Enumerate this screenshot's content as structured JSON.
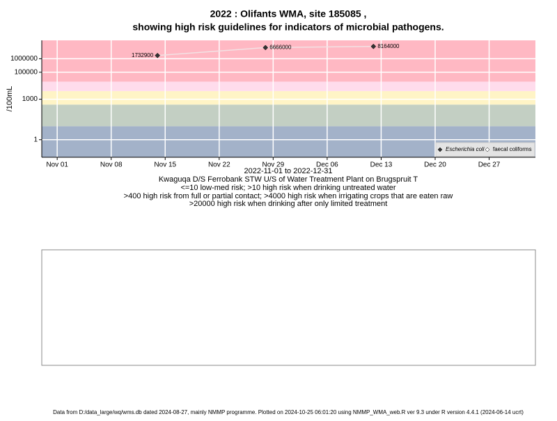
{
  "chart_data": {
    "type": "scatter",
    "title": [
      "2022 : Olifants WMA, site 185085 ,",
      "showing high risk guidelines for indicators of microbial pathogens."
    ],
    "x_label": "2022-11-01 to 2022-12-31",
    "notes": [
      "Kwaguqa D/S Ferrobank STW U/S of Water Treatment Plant on Brugspruit T",
      "<=10 low-med risk; >10 high risk when drinking untreated water",
      ">400 high risk from full or partial contact; >4000 high risk when irrigating crops that are eaten raw",
      ">20000 high risk when drinking after only limited treatment"
    ],
    "y_label": "/100mL",
    "footer": "Data from D:/data_large/wq/wms.db dated 2024-08-27, mainly NMMP programme. Plotted on 2024-10-25 06:01:20 using NMMP_WMA_web.R ver 9.3 under R version 4.4.1 (2024-06-14 ucrt)",
    "y_log": true,
    "grid": true,
    "ylim": [
      0.05,
      23000000
    ],
    "yticks": [
      1,
      1000,
      100000,
      1000000
    ],
    "xlim": [
      "2022-10-30",
      "2023-01-02"
    ],
    "xticks": [
      {
        "value": "2022-11-01",
        "label": "Nov 01"
      },
      {
        "value": "2022-11-08",
        "label": "Nov 08"
      },
      {
        "value": "2022-11-15",
        "label": "Nov 15"
      },
      {
        "value": "2022-11-22",
        "label": "Nov 22"
      },
      {
        "value": "2022-11-29",
        "label": "Nov 29"
      },
      {
        "value": "2022-12-06",
        "label": "Dec 06"
      },
      {
        "value": "2022-12-13",
        "label": "Dec 13"
      },
      {
        "value": "2022-12-20",
        "label": "Dec 20"
      },
      {
        "value": "2022-12-27",
        "label": "Dec 27"
      }
    ],
    "risk_thresholds": [
      10,
      400,
      4000,
      20000
    ],
    "risk_colors": [
      "#a3b2c9",
      "#c3cfc3",
      "#fff4c6",
      "#ffdcec",
      "#ffb8c3"
    ],
    "legend_position": "lower right",
    "x": [
      "2022-11-14",
      "2022-11-28",
      "2022-12-12"
    ],
    "series": [
      {
        "name": "Escherichia coli",
        "color": "#333333",
        "line_color": "#f2e2e4",
        "values": [
          1732900,
          6666000,
          8164000
        ]
      },
      {
        "name": "faecal coliforms",
        "color": "#ffffff",
        "values": [
          null,
          null,
          null
        ]
      }
    ]
  }
}
